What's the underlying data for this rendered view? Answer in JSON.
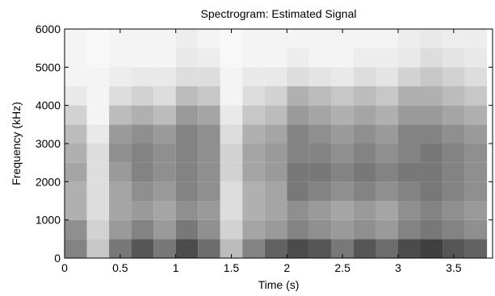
{
  "chart_data": {
    "type": "heatmap",
    "title": "Spectrogram: Estimated Signal",
    "xlabel": "Time (s)",
    "ylabel": "Frequency (kHz)",
    "xlim": [
      0,
      3.85
    ],
    "ylim": [
      0,
      6000
    ],
    "x_ticks": [
      0,
      0.5,
      1,
      1.5,
      2,
      2.5,
      3,
      3.5
    ],
    "x_tick_labels": [
      "0",
      "0.5",
      "1",
      "1.5",
      "2",
      "2.5",
      "3",
      "3.5"
    ],
    "y_ticks": [
      0,
      1000,
      2000,
      3000,
      4000,
      5000,
      6000
    ],
    "y_tick_labels": [
      "0",
      "1000",
      "2000",
      "3000",
      "4000",
      "5000",
      "6000"
    ],
    "colormap": "gray-inverted",
    "grid": false,
    "time_bins": [
      0.1,
      0.3,
      0.5,
      0.7,
      0.9,
      1.1,
      1.3,
      1.5,
      1.7,
      1.9,
      2.1,
      2.3,
      2.5,
      2.7,
      2.9,
      3.1,
      3.3,
      3.5,
      3.7
    ],
    "freq_bins": [
      250,
      750,
      1250,
      1750,
      2250,
      2750,
      3250,
      3750,
      4250,
      4750,
      5250,
      5750
    ],
    "intensity": [
      [
        0.55,
        0.5,
        0.35,
        0.35,
        0.4,
        0.35,
        0.3,
        0.2,
        0.1,
        0.05,
        0.05,
        0.05
      ],
      [
        0.25,
        0.2,
        0.15,
        0.15,
        0.15,
        0.15,
        0.1,
        0.05,
        0.05,
        0.05,
        0.03,
        0.03
      ],
      [
        0.6,
        0.45,
        0.4,
        0.4,
        0.45,
        0.5,
        0.45,
        0.3,
        0.15,
        0.08,
        0.05,
        0.05
      ],
      [
        0.75,
        0.55,
        0.45,
        0.5,
        0.55,
        0.55,
        0.5,
        0.35,
        0.2,
        0.1,
        0.05,
        0.05
      ],
      [
        0.6,
        0.45,
        0.4,
        0.45,
        0.5,
        0.5,
        0.45,
        0.3,
        0.15,
        0.1,
        0.05,
        0.05
      ],
      [
        0.8,
        0.6,
        0.5,
        0.55,
        0.55,
        0.55,
        0.55,
        0.45,
        0.3,
        0.15,
        0.1,
        0.08
      ],
      [
        0.65,
        0.5,
        0.45,
        0.5,
        0.5,
        0.5,
        0.5,
        0.4,
        0.25,
        0.15,
        0.08,
        0.05
      ],
      [
        0.3,
        0.2,
        0.15,
        0.15,
        0.2,
        0.2,
        0.15,
        0.1,
        0.05,
        0.05,
        0.03,
        0.03
      ],
      [
        0.55,
        0.4,
        0.35,
        0.35,
        0.4,
        0.4,
        0.35,
        0.25,
        0.15,
        0.1,
        0.05,
        0.05
      ],
      [
        0.7,
        0.45,
        0.4,
        0.4,
        0.45,
        0.45,
        0.4,
        0.3,
        0.2,
        0.1,
        0.05,
        0.05
      ],
      [
        0.8,
        0.55,
        0.5,
        0.6,
        0.6,
        0.55,
        0.55,
        0.45,
        0.35,
        0.15,
        0.08,
        0.05
      ],
      [
        0.75,
        0.5,
        0.45,
        0.55,
        0.6,
        0.55,
        0.5,
        0.4,
        0.3,
        0.12,
        0.05,
        0.05
      ],
      [
        0.6,
        0.45,
        0.4,
        0.5,
        0.55,
        0.5,
        0.45,
        0.35,
        0.25,
        0.1,
        0.05,
        0.05
      ],
      [
        0.75,
        0.5,
        0.45,
        0.55,
        0.6,
        0.55,
        0.5,
        0.4,
        0.3,
        0.15,
        0.08,
        0.05
      ],
      [
        0.65,
        0.45,
        0.4,
        0.5,
        0.55,
        0.5,
        0.45,
        0.35,
        0.25,
        0.12,
        0.08,
        0.05
      ],
      [
        0.8,
        0.55,
        0.5,
        0.55,
        0.6,
        0.55,
        0.55,
        0.45,
        0.35,
        0.2,
        0.1,
        0.08
      ],
      [
        0.85,
        0.6,
        0.55,
        0.6,
        0.6,
        0.6,
        0.55,
        0.45,
        0.35,
        0.25,
        0.15,
        0.1
      ],
      [
        0.75,
        0.55,
        0.5,
        0.55,
        0.55,
        0.55,
        0.5,
        0.4,
        0.3,
        0.2,
        0.12,
        0.08
      ],
      [
        0.7,
        0.5,
        0.45,
        0.5,
        0.5,
        0.5,
        0.45,
        0.35,
        0.25,
        0.15,
        0.1,
        0.08
      ]
    ]
  }
}
